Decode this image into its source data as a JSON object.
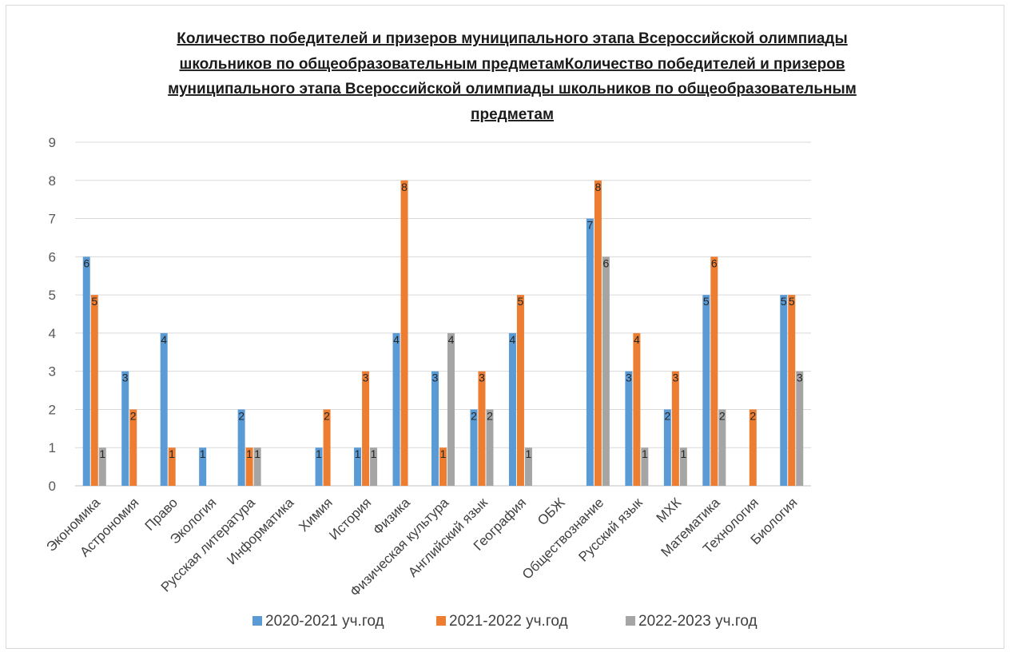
{
  "chart_data": {
    "type": "bar",
    "title_lines": [
      "Количество победителей и призеров муниципального этапа Всероссийской олимпиады",
      "школьников по общеобразовательным предметамКоличество победителей и призеров",
      "муниципального этапа Всероссийской олимпиады школьников по общеобразовательным",
      "предметам"
    ],
    "categories": [
      "Экономика",
      "Астрономия",
      "Право",
      "Экология",
      "Русская литература",
      "Информатика",
      "Химия",
      "История",
      "Физика",
      "Физическая культура",
      "Английский язык",
      "География",
      "ОБЖ",
      "Обществознание",
      "Русский язык",
      "МХК",
      "Математика",
      "Технология",
      "Биология"
    ],
    "series": [
      {
        "name": "2020-2021 уч.год",
        "color": "#5b9bd5",
        "values": [
          6,
          3,
          4,
          1,
          2,
          0,
          1,
          1,
          4,
          3,
          2,
          4,
          0,
          7,
          3,
          2,
          5,
          0,
          5
        ]
      },
      {
        "name": "2021-2022 уч.год",
        "color": "#ed7d31",
        "values": [
          5,
          2,
          1,
          0,
          1,
          0,
          2,
          3,
          8,
          1,
          3,
          5,
          0,
          8,
          4,
          3,
          6,
          2,
          5
        ]
      },
      {
        "name": "2022-2023 уч.год",
        "color": "#a5a5a5",
        "values": [
          1,
          0,
          0,
          0,
          1,
          0,
          0,
          1,
          0,
          4,
          2,
          1,
          0,
          6,
          1,
          1,
          2,
          0,
          3
        ]
      }
    ],
    "y_ticks": [
      "0",
      "1",
      "2",
      "3",
      "4",
      "5",
      "6",
      "7",
      "8",
      "9"
    ],
    "ylim": [
      0,
      9
    ],
    "grid": true,
    "legend": "bottom",
    "data_labels": true
  }
}
